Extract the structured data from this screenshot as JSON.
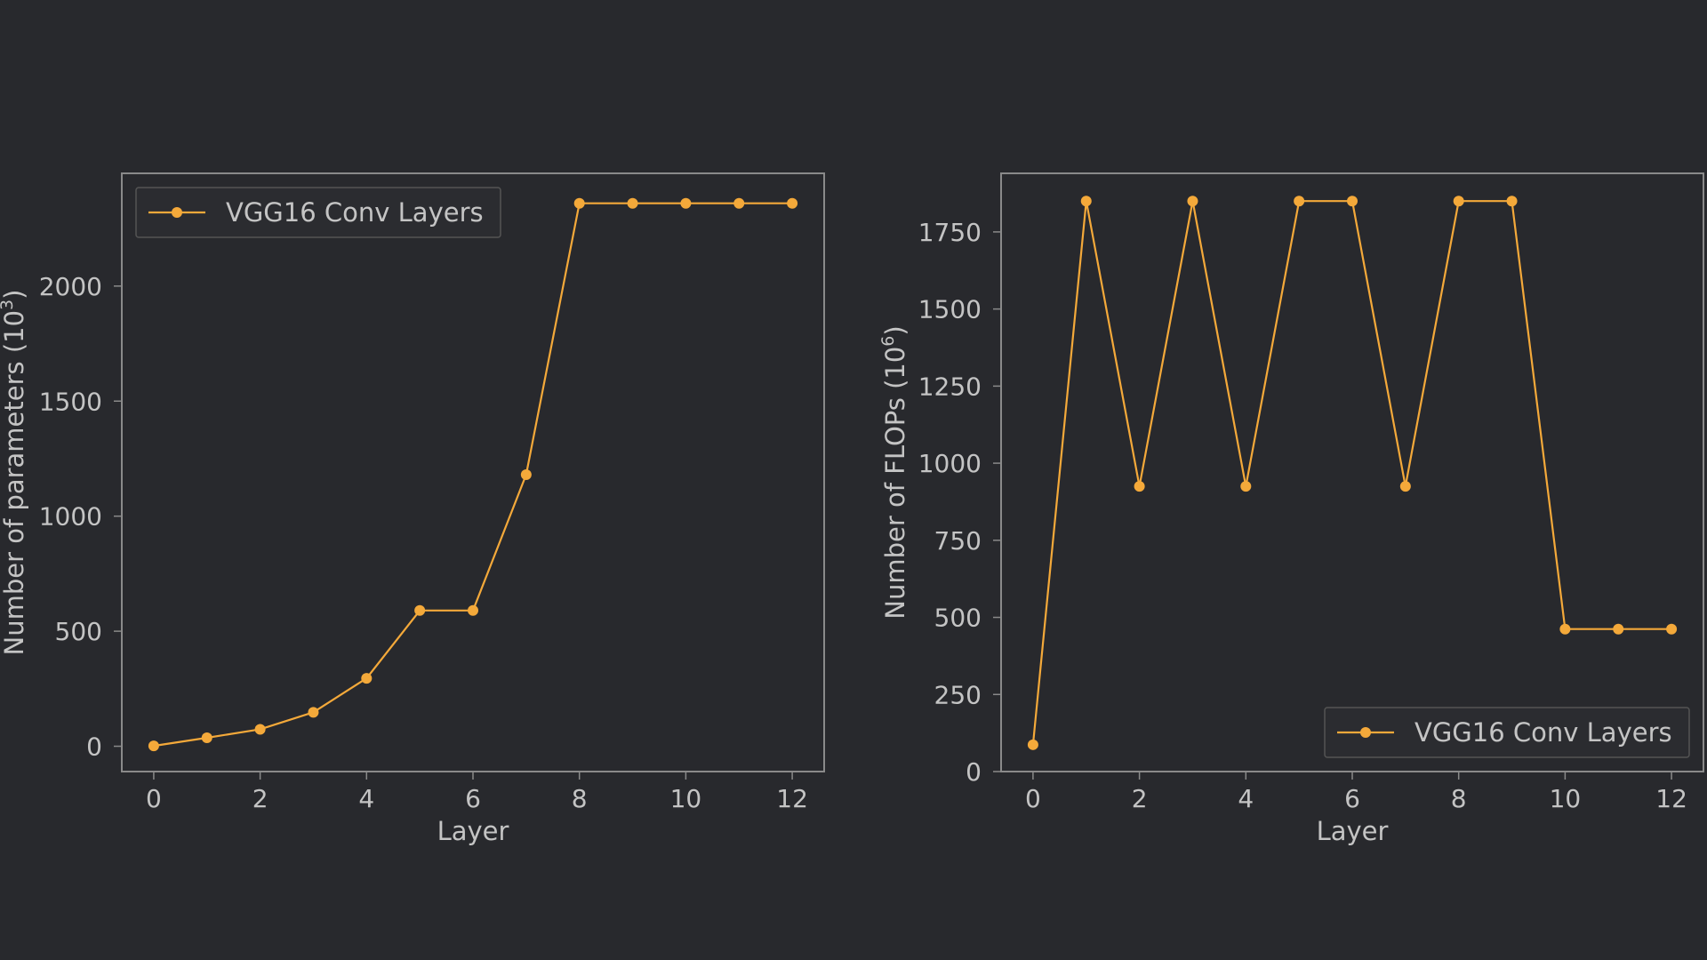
{
  "theme": {
    "background": "#28292d",
    "axes_face": "#28292d",
    "spine_color": "#8a8a8a",
    "text_color": "#c4c4c4",
    "series_color": "#f4a93a",
    "legend_face": "#2b2c30",
    "legend_edge": "#545454"
  },
  "chart_data": [
    {
      "type": "line",
      "title": "",
      "xlabel": "Layer",
      "ylabel": "Number of parameters (10",
      "ylabel_exp": "3",
      "ylabel_close": ")",
      "xlim": [
        -0.6,
        12.6
      ],
      "ylim": [
        -110,
        2490
      ],
      "xticks": [
        0,
        2,
        4,
        6,
        8,
        10,
        12
      ],
      "yticks": [
        0,
        500,
        1000,
        1500,
        2000
      ],
      "grid": false,
      "legend_position": "top-left",
      "series": [
        {
          "name": "VGG16 Conv Layers",
          "color": "#f4a93a",
          "marker": "circle",
          "x": [
            0,
            1,
            2,
            3,
            4,
            5,
            6,
            7,
            8,
            9,
            10,
            11,
            12
          ],
          "y": [
            1.7,
            36.9,
            73.7,
            147.5,
            295.2,
            590.1,
            590.1,
            1180.2,
            2359.8,
            2359.8,
            2359.8,
            2359.8,
            2359.8
          ]
        }
      ]
    },
    {
      "type": "line",
      "title": "",
      "xlabel": "Layer",
      "ylabel": "Number of FLOPs (10",
      "ylabel_exp": "6",
      "ylabel_close": ")",
      "xlim": [
        -0.6,
        12.6
      ],
      "ylim": [
        0,
        1940
      ],
      "xticks": [
        0,
        2,
        4,
        6,
        8,
        10,
        12
      ],
      "yticks": [
        0,
        250,
        500,
        750,
        1000,
        1250,
        1500,
        1750
      ],
      "grid": false,
      "legend_position": "bottom-right",
      "series": [
        {
          "name": "VGG16 Conv Layers",
          "color": "#f4a93a",
          "marker": "circle",
          "x": [
            0,
            1,
            2,
            3,
            4,
            5,
            6,
            7,
            8,
            9,
            10,
            11,
            12
          ],
          "y": [
            87,
            1850,
            925,
            1850,
            925,
            1850,
            1850,
            925,
            1850,
            1850,
            462,
            462,
            462
          ]
        }
      ]
    }
  ]
}
